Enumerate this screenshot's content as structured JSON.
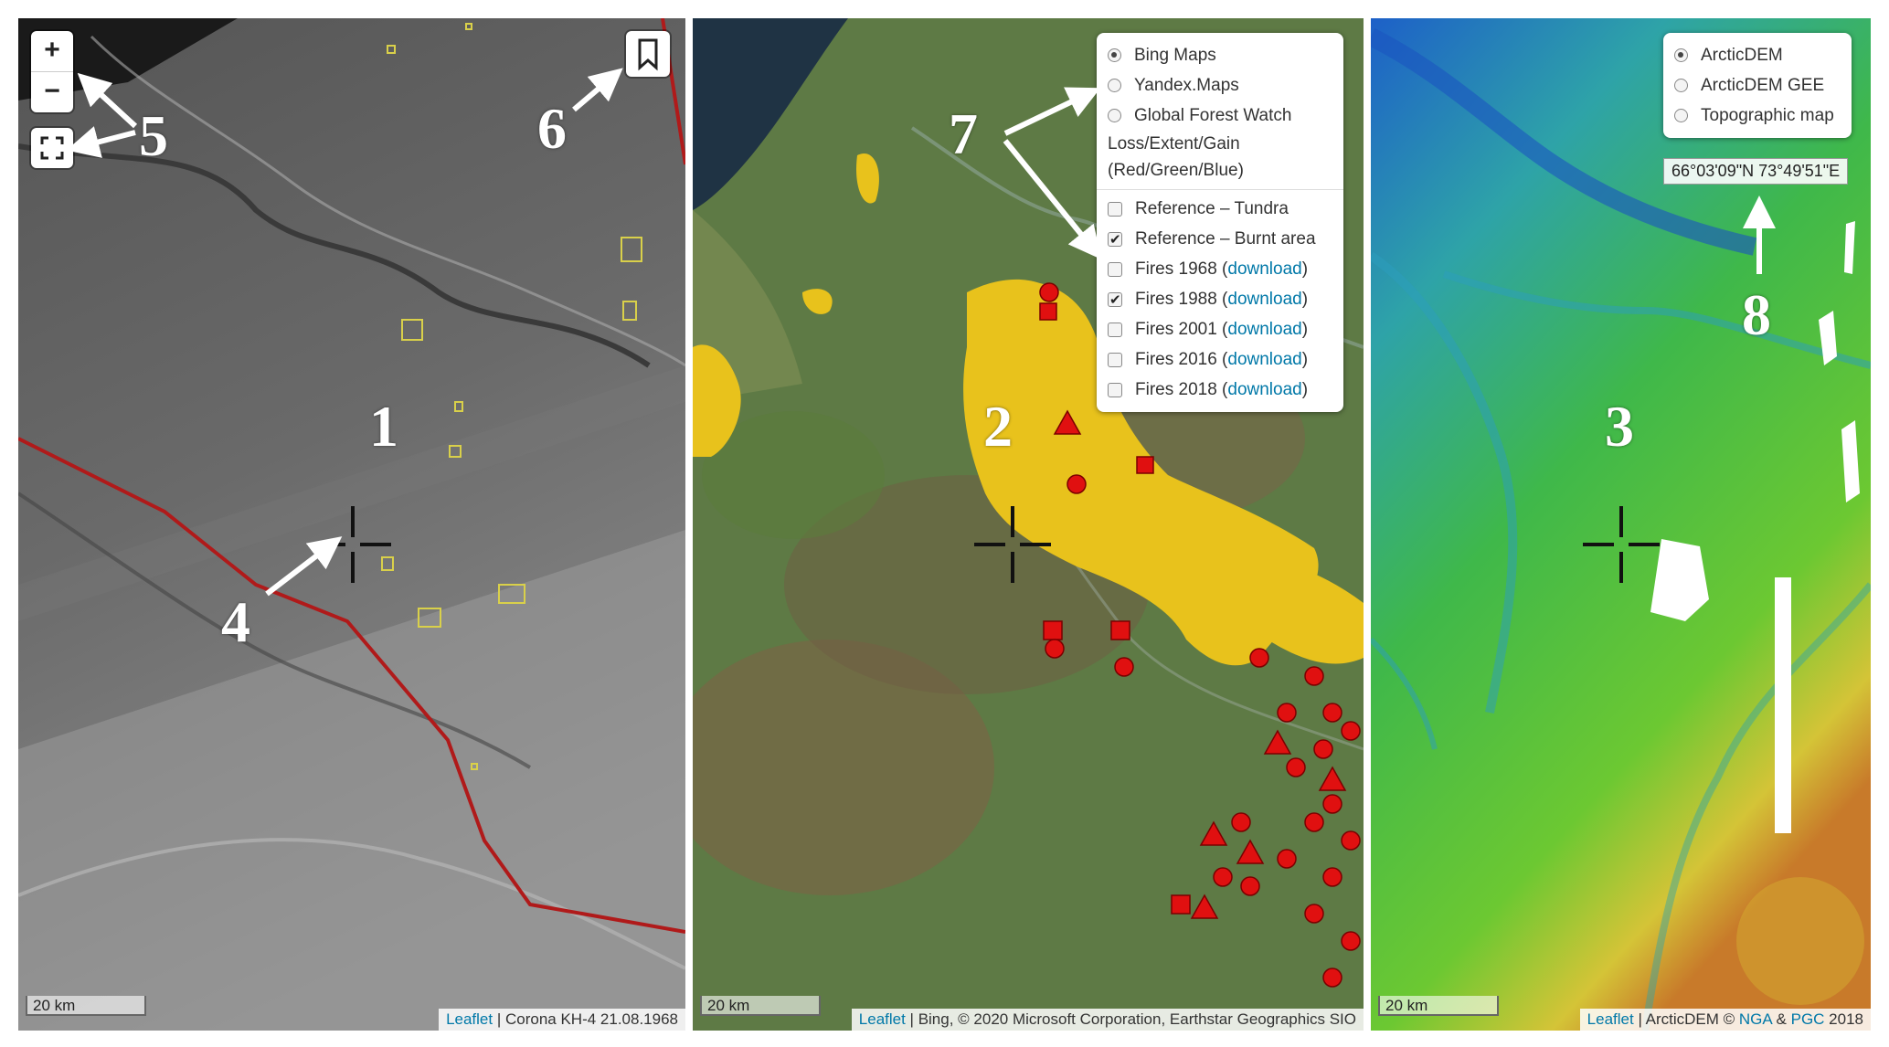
{
  "panel1": {
    "label": "1",
    "zoom_in": "+",
    "zoom_out": "−",
    "scale": "20 km",
    "attribution_link": "Leaflet",
    "attribution_text": " | Corona KH-4 21.08.1968",
    "annotations": {
      "crosshair": "4",
      "zoom_controls": "5",
      "bookmark": "6"
    }
  },
  "panel2": {
    "label": "2",
    "scale": "20 km",
    "attribution_link": "Leaflet",
    "attribution_text": " | Bing, © 2020 Microsoft Corporation, Earthstar Geographics SIO",
    "annotation_layers": "7",
    "basemaps": [
      {
        "label": "Bing Maps",
        "selected": true
      },
      {
        "label": "Yandex.Maps",
        "selected": false
      },
      {
        "label": "Global Forest Watch",
        "selected": false
      }
    ],
    "gfw_sub1": "Loss/Extent/Gain",
    "gfw_sub2": "(Red/Green/Blue)",
    "overlays": [
      {
        "label": "Reference – Tundra",
        "checked": false,
        "link": ""
      },
      {
        "label": "Reference – Burnt area",
        "checked": true,
        "link": ""
      },
      {
        "label": "Fires 1968 (",
        "checked": false,
        "link": "download",
        "tail": ")"
      },
      {
        "label": "Fires 1988 (",
        "checked": true,
        "link": "download",
        "tail": ")"
      },
      {
        "label": "Fires 2001 (",
        "checked": false,
        "link": "download",
        "tail": ")"
      },
      {
        "label": "Fires 2016 (",
        "checked": false,
        "link": "download",
        "tail": ")"
      },
      {
        "label": "Fires 2018 (",
        "checked": false,
        "link": "download",
        "tail": ")"
      }
    ]
  },
  "panel3": {
    "label": "3",
    "scale": "20 km",
    "attribution_link": "Leaflet",
    "attribution_text": " | ArcticDEM © ",
    "attribution_nga": "NGA",
    "attribution_amp": " & ",
    "attribution_pgc": "PGC",
    "attribution_year": " 2018",
    "annotation_coords": "8",
    "coordinates": "66°03'09\"N 73°49'51\"E",
    "basemaps": [
      {
        "label": "ArcticDEM",
        "selected": true
      },
      {
        "label": "ArcticDEM GEE",
        "selected": false
      },
      {
        "label": "Topographic map",
        "selected": false
      }
    ]
  },
  "colors": {
    "burnt_area": "#e8c21c",
    "fire_points": "#e01010",
    "boundary": "#b01a1a",
    "crosshair": "#111111"
  }
}
